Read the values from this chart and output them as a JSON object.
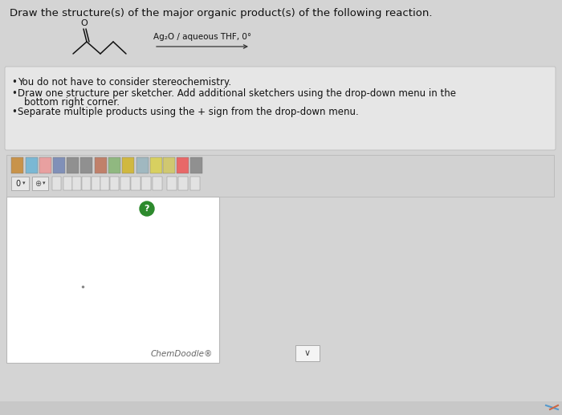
{
  "bg_color": "#d4d4d4",
  "title": "Draw the structure(s) of the major organic product(s) of the following reaction.",
  "title_fontsize": 9.5,
  "reagent_text": "Ag₂O / aqueous THF, 0°",
  "reagent_fontsize": 7.5,
  "bullet_points": [
    "You do not have to consider stereochemistry.",
    "Draw one structure per sketcher. Add additional sketchers using the drop-down menu in the bottom right corner.",
    "Separate multiple products using the + sign from the drop-down menu."
  ],
  "bullet_fontsize": 8.5,
  "instructions_box_color": "#e6e6e6",
  "instructions_border_color": "#c0c0c0",
  "sketcher_box_color": "#ffffff",
  "sketcher_border_color": "#b0b0b0",
  "chemdoodle_text": "ChemDoodle®",
  "toolbar_bg": "#d0d0d0",
  "toolbar_border": "#b8b8b8",
  "molecule_color": "#111111",
  "arrow_color": "#333333",
  "question_btn_color": "#2d8a2d",
  "dropdown_box_color": "#f4f4f4",
  "dropdown_border_color": "#aaaaaa",
  "outer_box_color": "#e0e0e0",
  "outer_box_border": "#c0c0c0"
}
